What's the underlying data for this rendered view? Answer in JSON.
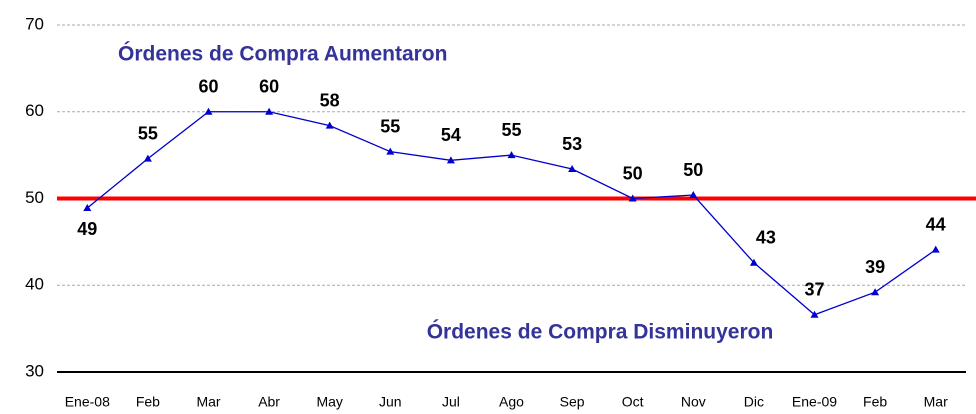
{
  "chart_data": {
    "type": "line",
    "categories": [
      "Ene-08",
      "Feb",
      "Mar",
      "Abr",
      "May",
      "Jun",
      "Jul",
      "Ago",
      "Sep",
      "Oct",
      "Nov",
      "Dic",
      "Ene-09",
      "Feb",
      "Mar"
    ],
    "series": [
      {
        "name": "Órdenes de Compra",
        "color": "#0000cc",
        "values": [
          48.9,
          54.6,
          60,
          60,
          58.4,
          55.4,
          54.4,
          55,
          53.4,
          50,
          50.4,
          42.6,
          36.6,
          39.2,
          44.1
        ],
        "value_labels": [
          49,
          55,
          60,
          60,
          58,
          55,
          54,
          55,
          53,
          50,
          50,
          43,
          37,
          39,
          44
        ]
      }
    ],
    "ylim": [
      30,
      70
    ],
    "yticks": [
      30,
      40,
      50,
      60,
      70
    ],
    "grid": true,
    "reference_line": {
      "value": 50,
      "color": "#ff0000"
    },
    "annotations": [
      "Órdenes de Compra Aumentaron",
      "Órdenes de Compra Disminuyeron"
    ],
    "annotation_color": "#333399"
  }
}
